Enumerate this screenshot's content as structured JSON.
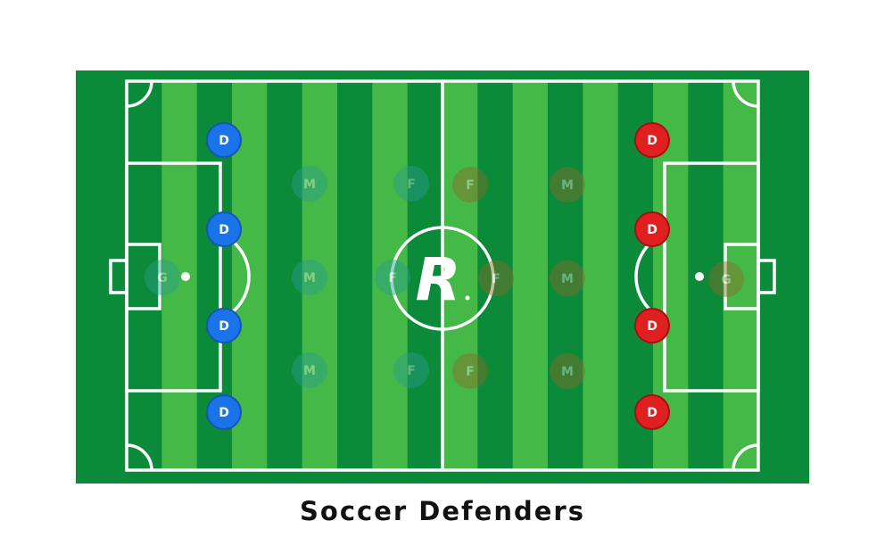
{
  "caption": "Soccer Defenders",
  "logo_text": "R",
  "colors": {
    "field_border": "#0b8a3a",
    "stripe_dark": "#0b8a3a",
    "stripe_light": "#45b947",
    "lines": "#ffffff",
    "team_left": "#1a73e8",
    "team_left_dark": "#1557b0",
    "team_right": "#e02020",
    "team_right_dark": "#a81010",
    "faded_left": "#2a9d8f",
    "faded_right": "#8a6a2a"
  },
  "players": [
    {
      "team": "left",
      "label": "D",
      "state": "highlighted"
    },
    {
      "team": "left",
      "label": "D",
      "state": "highlighted"
    },
    {
      "team": "left",
      "label": "D",
      "state": "highlighted"
    },
    {
      "team": "left",
      "label": "D",
      "state": "highlighted"
    },
    {
      "team": "left",
      "label": "G",
      "state": "faded"
    },
    {
      "team": "left",
      "label": "M",
      "state": "faded"
    },
    {
      "team": "left",
      "label": "M",
      "state": "faded"
    },
    {
      "team": "left",
      "label": "M",
      "state": "faded"
    },
    {
      "team": "left",
      "label": "F",
      "state": "faded"
    },
    {
      "team": "left",
      "label": "F",
      "state": "faded"
    },
    {
      "team": "left",
      "label": "F",
      "state": "faded"
    },
    {
      "team": "right",
      "label": "D",
      "state": "highlighted"
    },
    {
      "team": "right",
      "label": "D",
      "state": "highlighted"
    },
    {
      "team": "right",
      "label": "D",
      "state": "highlighted"
    },
    {
      "team": "right",
      "label": "D",
      "state": "highlighted"
    },
    {
      "team": "right",
      "label": "G",
      "state": "faded"
    },
    {
      "team": "right",
      "label": "M",
      "state": "faded"
    },
    {
      "team": "right",
      "label": "M",
      "state": "faded"
    },
    {
      "team": "right",
      "label": "M",
      "state": "faded"
    },
    {
      "team": "right",
      "label": "F",
      "state": "faded"
    },
    {
      "team": "right",
      "label": "F",
      "state": "faded"
    },
    {
      "team": "right",
      "label": "F",
      "state": "faded"
    }
  ]
}
